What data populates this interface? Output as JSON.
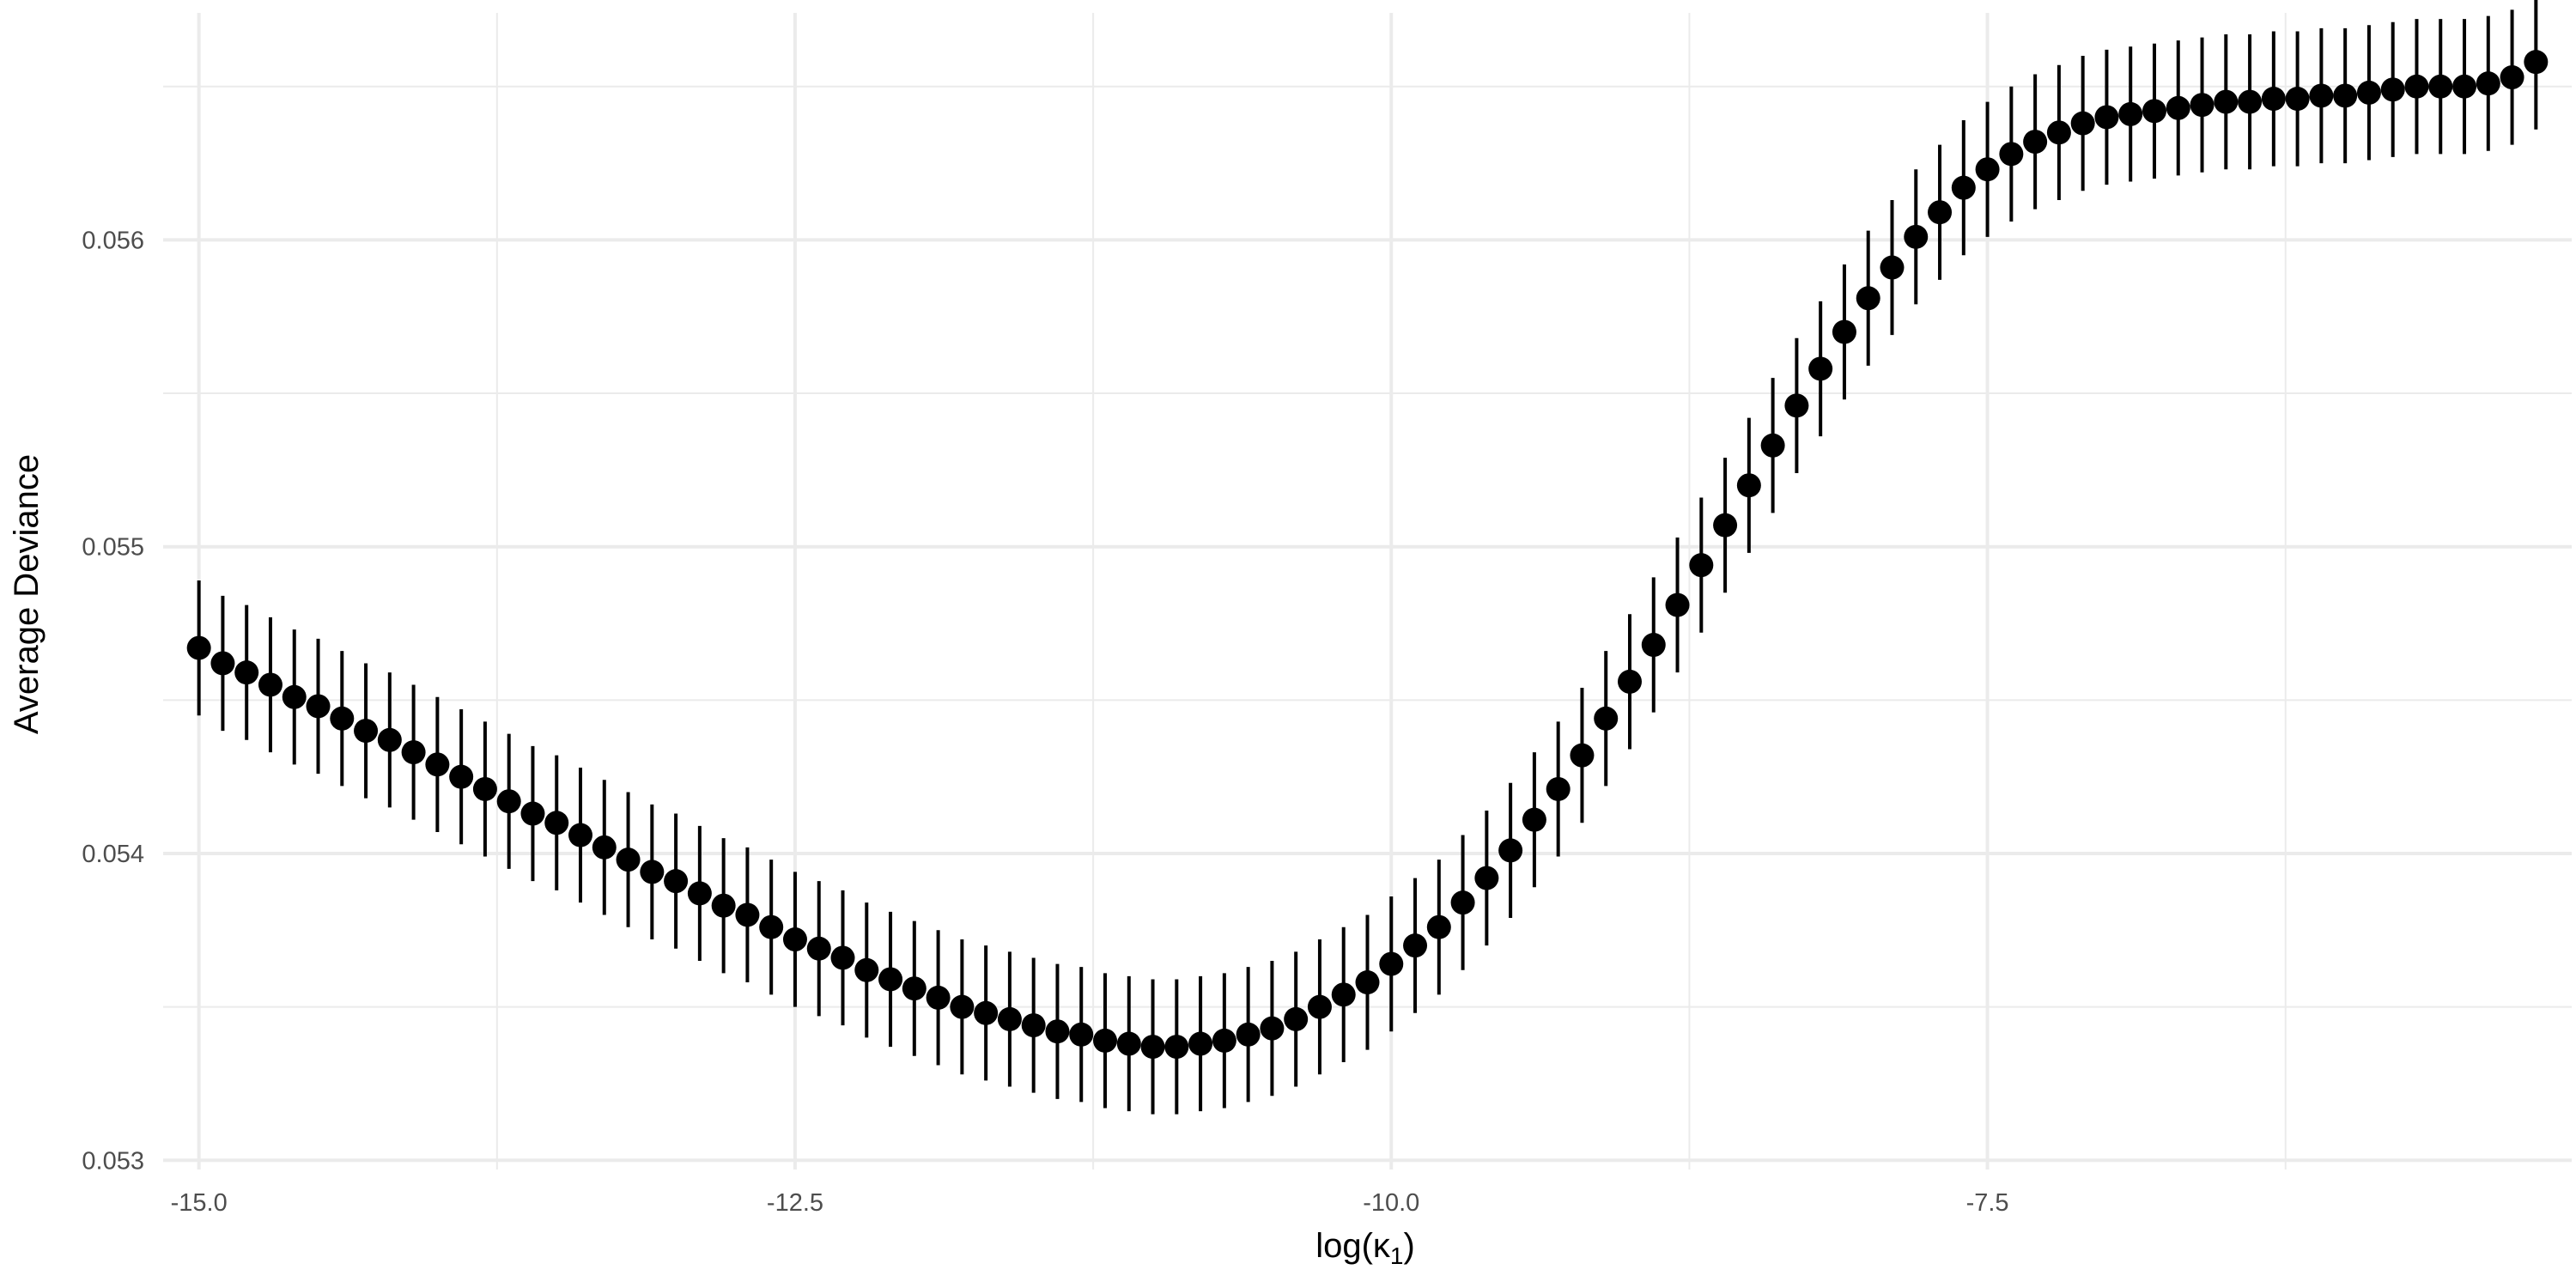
{
  "chart_data": {
    "type": "scatter",
    "title": "",
    "xlabel": "log(κ₁)",
    "xlabel_main": "log(κ",
    "xlabel_sub": "1",
    "xlabel_close": ")",
    "ylabel": "Average Deviance",
    "xlim": [
      -15.15,
      -5.05
    ],
    "ylim": [
      0.05297,
      0.05674
    ],
    "x_ticks": [
      -15.0,
      -12.5,
      -10.0,
      -7.5
    ],
    "x_tick_labels": [
      "-15.0",
      "-12.5",
      "-10.0",
      "-7.5"
    ],
    "x_minor_ticks": [
      -13.75,
      -11.25,
      -8.75,
      -6.25
    ],
    "y_ticks": [
      0.053,
      0.054,
      0.055,
      0.056
    ],
    "y_tick_labels": [
      "0.053",
      "0.054",
      "0.055",
      "0.056"
    ],
    "y_minor_ticks": [
      0.0535,
      0.0545,
      0.0555,
      0.0565
    ],
    "grid": true,
    "legend": "none",
    "colors": {
      "point": "#000000",
      "highlight": "#ff0000",
      "grid": "#ebebeb",
      "text": "#4d4d4d"
    },
    "highlight_x": -11.15,
    "series": [
      {
        "x": [
          -15.0,
          -14.9,
          -14.8,
          -14.7,
          -14.6,
          -14.5,
          -14.4,
          -14.3,
          -14.2,
          -14.1,
          -14.0,
          -13.9,
          -13.8,
          -13.7,
          -13.6,
          -13.5,
          -13.4,
          -13.3,
          -13.2,
          -13.1,
          -13.0,
          -12.9,
          -12.8,
          -12.7,
          -12.6,
          -12.5,
          -12.4,
          -12.3,
          -12.2,
          -12.1,
          -12.0,
          -11.9,
          -11.8,
          -11.7,
          -11.6,
          -11.5,
          -11.4,
          -11.3,
          -11.2,
          -11.1,
          -11.0,
          -10.9,
          -10.8,
          -10.7,
          -10.6,
          -10.5,
          -10.4,
          -10.3,
          -10.2,
          -10.1,
          -10.0,
          -9.9,
          -9.8,
          -9.7,
          -9.6,
          -9.5,
          -9.4,
          -9.3,
          -9.2,
          -9.1,
          -9.0,
          -8.9,
          -8.8,
          -8.7,
          -8.6,
          -8.5,
          -8.4,
          -8.3,
          -8.2,
          -8.1,
          -8.0,
          -7.9,
          -7.8,
          -7.7,
          -7.6,
          -7.5,
          -7.4,
          -7.3,
          -7.2,
          -7.1,
          -7.0,
          -6.9,
          -6.8,
          -6.7,
          -6.6,
          -6.5,
          -6.4,
          -6.3,
          -6.2,
          -6.1,
          -6.0,
          -5.9,
          -5.8,
          -5.7,
          -5.6,
          -5.5,
          -5.4,
          -5.3,
          -5.2
        ],
        "y": [
          0.05467,
          0.05462,
          0.05459,
          0.05455,
          0.05451,
          0.05448,
          0.05444,
          0.0544,
          0.05437,
          0.05433,
          0.05429,
          0.05425,
          0.05421,
          0.05417,
          0.05413,
          0.0541,
          0.05406,
          0.05402,
          0.05398,
          0.05394,
          0.05391,
          0.05387,
          0.05383,
          0.0538,
          0.05376,
          0.05372,
          0.05369,
          0.05366,
          0.05362,
          0.05359,
          0.05356,
          0.05353,
          0.0535,
          0.05348,
          0.05346,
          0.05344,
          0.05342,
          0.05341,
          0.05339,
          0.05338,
          0.05337,
          0.05337,
          0.05338,
          0.05339,
          0.05341,
          0.05343,
          0.05346,
          0.0535,
          0.05354,
          0.05358,
          0.05364,
          0.0537,
          0.05376,
          0.05384,
          0.05392,
          0.05401,
          0.05411,
          0.05421,
          0.05432,
          0.05444,
          0.05456,
          0.05468,
          0.05481,
          0.05494,
          0.05507,
          0.0552,
          0.05533,
          0.05546,
          0.05558,
          0.0557,
          0.05581,
          0.05591,
          0.05601,
          0.05609,
          0.05617,
          0.05623,
          0.05628,
          0.05632,
          0.05635,
          0.05638,
          0.0564,
          0.05641,
          0.05642,
          0.05643,
          0.05644,
          0.05645,
          0.05645,
          0.05646,
          0.05646,
          0.05647,
          0.05647,
          0.05648,
          0.05649,
          0.0565,
          0.0565,
          0.0565,
          0.05651,
          0.05653,
          0.05658
        ],
        "ymin": [
          0.05445,
          0.0544,
          0.05437,
          0.05433,
          0.05429,
          0.05426,
          0.05422,
          0.05418,
          0.05415,
          0.05411,
          0.05407,
          0.05403,
          0.05399,
          0.05395,
          0.05391,
          0.05388,
          0.05384,
          0.0538,
          0.05376,
          0.05372,
          0.05369,
          0.05365,
          0.05361,
          0.05358,
          0.05354,
          0.0535,
          0.05347,
          0.05344,
          0.0534,
          0.05337,
          0.05334,
          0.05331,
          0.05328,
          0.05326,
          0.05324,
          0.05322,
          0.0532,
          0.05319,
          0.05317,
          0.05316,
          0.05315,
          0.05315,
          0.05316,
          0.05317,
          0.05319,
          0.05321,
          0.05324,
          0.05328,
          0.05332,
          0.05336,
          0.05342,
          0.05348,
          0.05354,
          0.05362,
          0.0537,
          0.05379,
          0.05389,
          0.05399,
          0.0541,
          0.05422,
          0.05434,
          0.05446,
          0.05459,
          0.05472,
          0.05485,
          0.05498,
          0.05511,
          0.05524,
          0.05536,
          0.05548,
          0.05559,
          0.05569,
          0.05579,
          0.05587,
          0.05595,
          0.05601,
          0.05606,
          0.0561,
          0.05613,
          0.05616,
          0.05618,
          0.05619,
          0.0562,
          0.05621,
          0.05622,
          0.05623,
          0.05623,
          0.05624,
          0.05624,
          0.05625,
          0.05625,
          0.05626,
          0.05627,
          0.05628,
          0.05628,
          0.05628,
          0.05629,
          0.05631,
          0.05636
        ],
        "ymax": [
          0.05489,
          0.05484,
          0.05481,
          0.05477,
          0.05473,
          0.0547,
          0.05466,
          0.05462,
          0.05459,
          0.05455,
          0.05451,
          0.05447,
          0.05443,
          0.05439,
          0.05435,
          0.05432,
          0.05428,
          0.05424,
          0.0542,
          0.05416,
          0.05413,
          0.05409,
          0.05405,
          0.05402,
          0.05398,
          0.05394,
          0.05391,
          0.05388,
          0.05384,
          0.05381,
          0.05378,
          0.05375,
          0.05372,
          0.0537,
          0.05368,
          0.05366,
          0.05364,
          0.05363,
          0.05361,
          0.0536,
          0.05359,
          0.05359,
          0.0536,
          0.05361,
          0.05363,
          0.05365,
          0.05368,
          0.05372,
          0.05376,
          0.0538,
          0.05386,
          0.05392,
          0.05398,
          0.05406,
          0.05414,
          0.05423,
          0.05433,
          0.05443,
          0.05454,
          0.05466,
          0.05478,
          0.0549,
          0.05503,
          0.05516,
          0.05529,
          0.05542,
          0.05555,
          0.05568,
          0.0558,
          0.05592,
          0.05603,
          0.05613,
          0.05623,
          0.05631,
          0.05639,
          0.05645,
          0.0565,
          0.05654,
          0.05657,
          0.0566,
          0.05662,
          0.05663,
          0.05664,
          0.05665,
          0.05666,
          0.05667,
          0.05667,
          0.05668,
          0.05668,
          0.05669,
          0.05669,
          0.0567,
          0.05671,
          0.05672,
          0.05672,
          0.05672,
          0.05673,
          0.05675,
          0.0568
        ]
      }
    ]
  }
}
